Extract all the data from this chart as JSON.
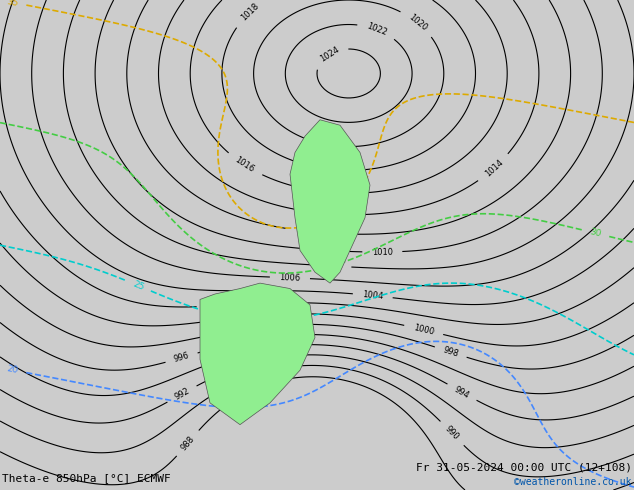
{
  "title_left": "Theta-e 850hPa [°C] ECMWF",
  "title_right": "Fr 31-05-2024 00:00 UTC (12+108)",
  "copyright": "©weatheronline.co.uk",
  "background_color": "#d8d8d8",
  "land_color": "#90EE90",
  "fig_width": 6.34,
  "fig_height": 4.9,
  "dpi": 100
}
